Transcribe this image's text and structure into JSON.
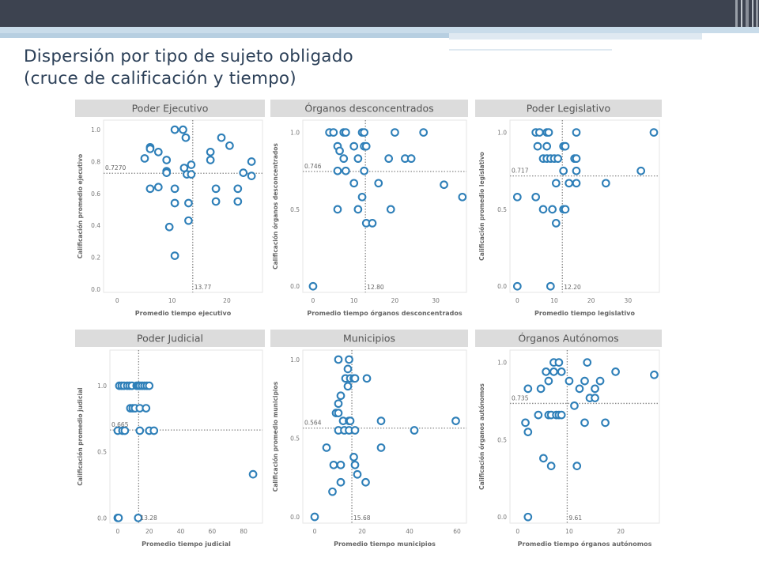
{
  "header": {
    "title_line1": "Dispersión por tipo de sujeto obligado",
    "title_line2": "(cruce de calificación y tiempo)"
  },
  "colors": {
    "top_bar": "#3d4350",
    "stripe": "#c9dcea",
    "title": "#2c4058",
    "panel_header": "#dcdcdc",
    "marker": "#2e7fb8",
    "text": "#555555"
  },
  "chart_data": [
    {
      "type": "scatter",
      "title": "Poder Ejecutivo",
      "xlabel": "Promedio tiempo ejecutivo",
      "ylabel": "Calificación promedio ejecutivo",
      "xlim": [
        -2.5,
        26.5
      ],
      "ylim": [
        -0.02,
        1.06
      ],
      "x_ticks": [
        0,
        10,
        20
      ],
      "y_ticks": [
        0.0,
        0.2,
        0.4,
        0.6,
        0.8,
        1.0
      ],
      "y_tick_labels": [
        "0.0",
        "0.2",
        "0.4",
        "0.6",
        "0.8",
        "1.0"
      ],
      "ref_x": 13.77,
      "ref_x_label": "13.77",
      "ref_y": 0.727,
      "ref_y_label": "0.7270",
      "points": [
        [
          10.5,
          1.0
        ],
        [
          12,
          1.0
        ],
        [
          12.5,
          0.95
        ],
        [
          6,
          0.89
        ],
        [
          6,
          0.88
        ],
        [
          7.5,
          0.86
        ],
        [
          5,
          0.82
        ],
        [
          9,
          0.81
        ],
        [
          13.5,
          0.78
        ],
        [
          12.2,
          0.76
        ],
        [
          9,
          0.74
        ],
        [
          9,
          0.73
        ],
        [
          12.7,
          0.72
        ],
        [
          13.5,
          0.72
        ],
        [
          17,
          0.86
        ],
        [
          19,
          0.95
        ],
        [
          20.5,
          0.9
        ],
        [
          17,
          0.81
        ],
        [
          24.5,
          0.8
        ],
        [
          23,
          0.73
        ],
        [
          24.5,
          0.71
        ],
        [
          6,
          0.63
        ],
        [
          7.5,
          0.64
        ],
        [
          10.5,
          0.63
        ],
        [
          18,
          0.63
        ],
        [
          22,
          0.63
        ],
        [
          10.5,
          0.54
        ],
        [
          13,
          0.54
        ],
        [
          18,
          0.55
        ],
        [
          22,
          0.55
        ],
        [
          13,
          0.43
        ],
        [
          9.5,
          0.39
        ],
        [
          10.5,
          0.21
        ]
      ]
    },
    {
      "type": "scatter",
      "title": "Órganos desconcentrados",
      "xlabel": "Promedio tiempo órganos desconcentrados",
      "ylabel": "Calificación órganos desconcentrados",
      "xlim": [
        -2.5,
        37.5
      ],
      "ylim": [
        -0.04,
        1.08
      ],
      "x_ticks": [
        0,
        10,
        20,
        30
      ],
      "y_ticks": [
        0.0,
        0.5,
        1.0
      ],
      "y_tick_labels": [
        "0.0",
        "0.5",
        "1.0"
      ],
      "ref_x": 12.8,
      "ref_x_label": "12.80",
      "ref_y": 0.746,
      "ref_y_label": "0.746",
      "points": [
        [
          0,
          0
        ],
        [
          4,
          1.0
        ],
        [
          5,
          1.0
        ],
        [
          7.5,
          1.0
        ],
        [
          8,
          1.0
        ],
        [
          12,
          1.0
        ],
        [
          12.5,
          1.0
        ],
        [
          20,
          1.0
        ],
        [
          27,
          1.0
        ],
        [
          6,
          0.91
        ],
        [
          10,
          0.91
        ],
        [
          12.5,
          0.91
        ],
        [
          13,
          0.91
        ],
        [
          6.5,
          0.88
        ],
        [
          7.5,
          0.83
        ],
        [
          11,
          0.83
        ],
        [
          18.5,
          0.83
        ],
        [
          22.5,
          0.83
        ],
        [
          24,
          0.83
        ],
        [
          6,
          0.75
        ],
        [
          8,
          0.75
        ],
        [
          12.5,
          0.75
        ],
        [
          10,
          0.67
        ],
        [
          16,
          0.67
        ],
        [
          32,
          0.66
        ],
        [
          12,
          0.58
        ],
        [
          36.5,
          0.58
        ],
        [
          6,
          0.5
        ],
        [
          11,
          0.5
        ],
        [
          19,
          0.5
        ],
        [
          13,
          0.41
        ],
        [
          14.5,
          0.41
        ]
      ]
    },
    {
      "type": "scatter",
      "title": "Poder Legislativo",
      "xlabel": "Promedio tiempo legislativo",
      "ylabel": "Calificación promedio legislativo",
      "xlim": [
        -2,
        38.5
      ],
      "ylim": [
        -0.04,
        1.08
      ],
      "x_ticks": [
        0,
        10,
        20,
        30
      ],
      "y_ticks": [
        0.0,
        0.5,
        1.0
      ],
      "y_tick_labels": [
        "0.0",
        "0.5",
        "1.0"
      ],
      "ref_x": 12.2,
      "ref_x_label": "12.20",
      "ref_y": 0.717,
      "ref_y_label": "0.717",
      "points": [
        [
          0,
          0
        ],
        [
          0,
          0.58
        ],
        [
          5,
          0.58
        ],
        [
          9,
          0
        ],
        [
          5,
          1.0
        ],
        [
          6,
          1.0
        ],
        [
          8,
          1.0
        ],
        [
          8.5,
          1.0
        ],
        [
          16,
          1.0
        ],
        [
          37,
          1.0
        ],
        [
          5.5,
          0.91
        ],
        [
          8,
          0.91
        ],
        [
          12.5,
          0.91
        ],
        [
          13,
          0.91
        ],
        [
          7,
          0.83
        ],
        [
          8,
          0.83
        ],
        [
          9,
          0.83
        ],
        [
          10,
          0.83
        ],
        [
          11,
          0.83
        ],
        [
          15.5,
          0.83
        ],
        [
          16,
          0.83
        ],
        [
          12.5,
          0.75
        ],
        [
          16,
          0.75
        ],
        [
          33.5,
          0.75
        ],
        [
          10.5,
          0.67
        ],
        [
          14,
          0.67
        ],
        [
          16,
          0.67
        ],
        [
          24,
          0.67
        ],
        [
          7,
          0.5
        ],
        [
          9.5,
          0.5
        ],
        [
          12.5,
          0.5
        ],
        [
          13,
          0.5
        ],
        [
          10.5,
          0.41
        ]
      ]
    },
    {
      "type": "scatter",
      "title": "Poder Judicial",
      "xlabel": "Promedio tiempo judicial",
      "ylabel": "Calificación promedio judicial",
      "xlim": [
        -5,
        92
      ],
      "ylim": [
        -0.04,
        1.27
      ],
      "x_ticks": [
        0,
        20,
        40,
        60,
        80
      ],
      "y_ticks": [
        0.0,
        0.5,
        1.0
      ],
      "y_tick_labels": [
        "0.0",
        "0.5",
        "1.0"
      ],
      "ref_x": 13.28,
      "ref_x_label": "13.28",
      "ref_y": 0.665,
      "ref_y_label": "0.665",
      "points": [
        [
          0,
          0
        ],
        [
          0.5,
          0
        ],
        [
          13,
          0
        ],
        [
          1,
          1.0
        ],
        [
          2.5,
          1.0
        ],
        [
          4,
          1.0
        ],
        [
          6,
          1.0
        ],
        [
          7.5,
          1.0
        ],
        [
          9,
          1.0
        ],
        [
          12,
          1.0
        ],
        [
          13,
          1.0
        ],
        [
          14,
          1.0
        ],
        [
          15.5,
          1.0
        ],
        [
          17,
          1.0
        ],
        [
          18.5,
          1.0
        ],
        [
          20,
          1.0
        ],
        [
          8,
          0.83
        ],
        [
          9.5,
          0.83
        ],
        [
          11,
          0.83
        ],
        [
          14,
          0.83
        ],
        [
          18,
          0.83
        ],
        [
          0,
          0.66
        ],
        [
          3,
          0.66
        ],
        [
          4.5,
          0.66
        ],
        [
          14,
          0.66
        ],
        [
          20,
          0.66
        ],
        [
          23,
          0.66
        ],
        [
          86,
          0.33
        ]
      ]
    },
    {
      "type": "scatter",
      "title": "Municipios",
      "xlabel": "Promedio tiempo municipios",
      "ylabel": "Calificación promedio municipios",
      "xlim": [
        -5,
        64
      ],
      "ylim": [
        -0.04,
        1.06
      ],
      "x_ticks": [
        0,
        20,
        40,
        60
      ],
      "y_ticks": [
        0.0,
        0.5,
        1.0
      ],
      "y_tick_labels": [
        "0.0",
        "0.5",
        "1.0"
      ],
      "ref_x": 15.68,
      "ref_x_label": "15.68",
      "ref_y": 0.564,
      "ref_y_label": "0.564",
      "points": [
        [
          0,
          0
        ],
        [
          10,
          1.0
        ],
        [
          14.5,
          1.0
        ],
        [
          14,
          0.94
        ],
        [
          13,
          0.88
        ],
        [
          15,
          0.88
        ],
        [
          16.5,
          0.88
        ],
        [
          17,
          0.88
        ],
        [
          22,
          0.88
        ],
        [
          14,
          0.83
        ],
        [
          11,
          0.77
        ],
        [
          10,
          0.72
        ],
        [
          9,
          0.66
        ],
        [
          10,
          0.66
        ],
        [
          12,
          0.61
        ],
        [
          14.5,
          0.61
        ],
        [
          15,
          0.61
        ],
        [
          28,
          0.61
        ],
        [
          59.5,
          0.61
        ],
        [
          10,
          0.55
        ],
        [
          12.5,
          0.55
        ],
        [
          14.5,
          0.55
        ],
        [
          17,
          0.55
        ],
        [
          42,
          0.55
        ],
        [
          5,
          0.44
        ],
        [
          28,
          0.44
        ],
        [
          16.5,
          0.38
        ],
        [
          8,
          0.33
        ],
        [
          11,
          0.33
        ],
        [
          17,
          0.33
        ],
        [
          18,
          0.27
        ],
        [
          11,
          0.22
        ],
        [
          21.5,
          0.22
        ],
        [
          7.5,
          0.16
        ]
      ]
    },
    {
      "type": "scatter",
      "title": "Órganos Autónomos",
      "xlabel": "Promedio tiempo órganos autónomos",
      "ylabel": "Calificación órganos autónomos",
      "xlim": [
        -1.5,
        27.5
      ],
      "ylim": [
        -0.04,
        1.08
      ],
      "x_ticks": [
        0,
        10,
        20
      ],
      "y_ticks": [
        0.0,
        0.5,
        1.0
      ],
      "y_tick_labels": [
        "0.0",
        "0.5",
        "1.0"
      ],
      "ref_x": 9.61,
      "ref_x_label": "9.61",
      "ref_y": 0.735,
      "ref_y_label": "0.735",
      "points": [
        [
          2,
          0
        ],
        [
          7,
          1.0
        ],
        [
          8,
          1.0
        ],
        [
          13.5,
          1.0
        ],
        [
          5.5,
          0.94
        ],
        [
          7,
          0.94
        ],
        [
          8.5,
          0.94
        ],
        [
          19,
          0.94
        ],
        [
          26.5,
          0.92
        ],
        [
          6,
          0.88
        ],
        [
          10,
          0.88
        ],
        [
          13,
          0.88
        ],
        [
          16,
          0.88
        ],
        [
          2,
          0.83
        ],
        [
          4.5,
          0.83
        ],
        [
          12,
          0.83
        ],
        [
          15,
          0.83
        ],
        [
          14,
          0.77
        ],
        [
          15,
          0.77
        ],
        [
          11,
          0.72
        ],
        [
          4,
          0.66
        ],
        [
          6,
          0.66
        ],
        [
          6.5,
          0.66
        ],
        [
          7.5,
          0.66
        ],
        [
          8,
          0.66
        ],
        [
          8.5,
          0.66
        ],
        [
          1.5,
          0.61
        ],
        [
          13,
          0.61
        ],
        [
          17,
          0.61
        ],
        [
          2,
          0.55
        ],
        [
          5,
          0.38
        ],
        [
          6.5,
          0.33
        ],
        [
          11.5,
          0.33
        ]
      ]
    }
  ]
}
